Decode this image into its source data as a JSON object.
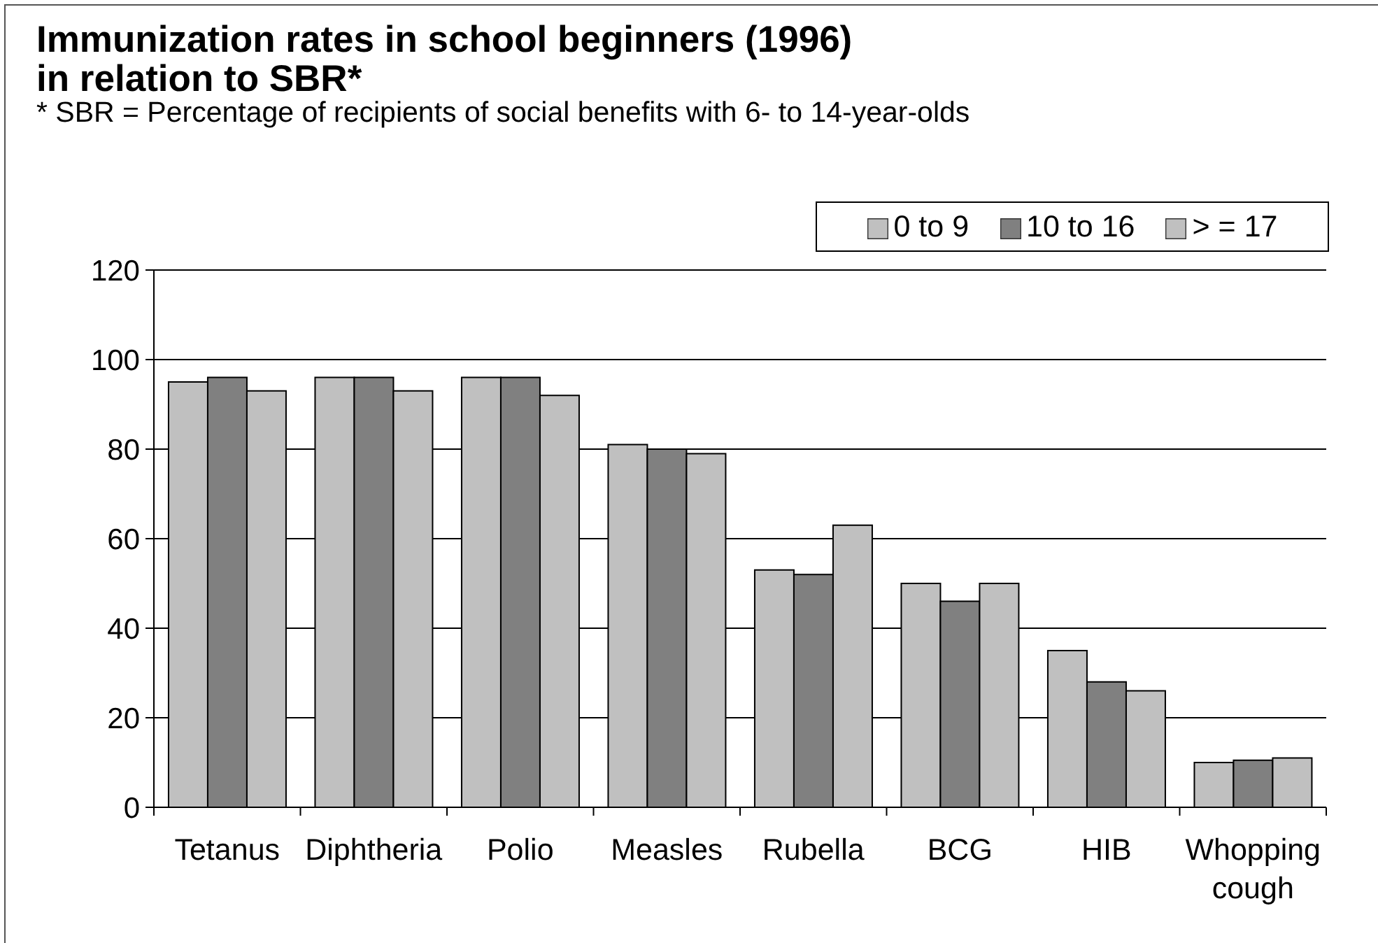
{
  "chart_data": {
    "type": "bar",
    "title": "Immunization rates in school beginners (1996)\nin relation to SBR*",
    "subtitle": "* SBR = Percentage of recipients of social benefits with 6- to 14-year-olds",
    "categories": [
      "Tetanus",
      "Diphtheria",
      "Polio",
      "Measles",
      "Rubella",
      "BCG",
      "HIB",
      "Whopping cough"
    ],
    "series": [
      {
        "name": "0 to 9",
        "color": "#c0c0c0",
        "values": [
          95,
          96,
          96,
          81,
          53,
          50,
          35,
          10
        ]
      },
      {
        "name": "10 to 16",
        "color": "#808080",
        "values": [
          96,
          96,
          96,
          80,
          52,
          46,
          28,
          10.5
        ]
      },
      {
        "name": "> = 17",
        "color": "#c0c0c0",
        "values": [
          93,
          93,
          92,
          79,
          63,
          50,
          26,
          11
        ]
      }
    ],
    "ylim": [
      0,
      120
    ],
    "yticks": [
      0,
      20,
      40,
      60,
      80,
      100,
      120
    ],
    "grid": "y",
    "legend": "top right"
  }
}
